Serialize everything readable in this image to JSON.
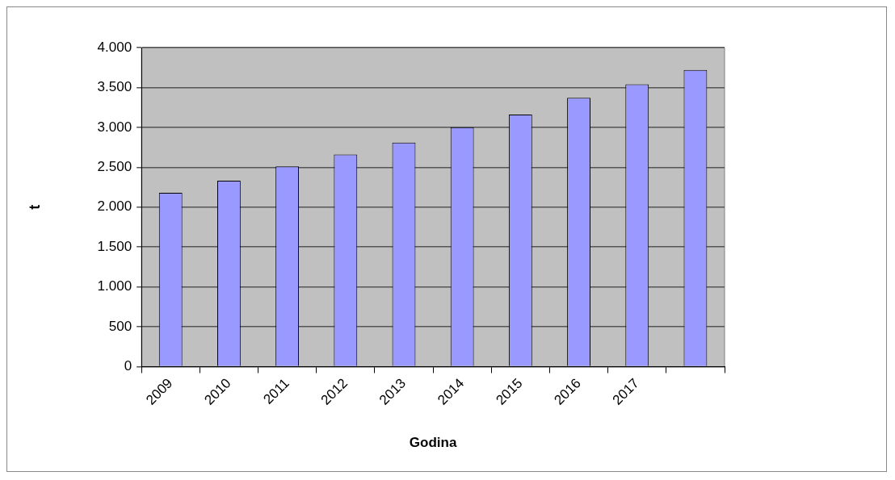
{
  "chart_data": {
    "type": "bar",
    "xlabel": "Godina",
    "ylabel": "t",
    "categories": [
      "2009",
      "2010",
      "2011",
      "2012",
      "2013",
      "2014",
      "2015",
      "2016",
      "2017",
      null
    ],
    "series": [
      {
        "color": "#9999ff",
        "values": [
          2180,
          2330,
          2510,
          2660,
          2810,
          3000,
          3160,
          3370,
          3540,
          3720
        ]
      }
    ],
    "ylim": [
      0,
      4000
    ],
    "yticks": [
      {
        "value": 0,
        "label": "0"
      },
      {
        "value": 500,
        "label": "500"
      },
      {
        "value": 1000,
        "label": "1.000"
      },
      {
        "value": 1500,
        "label": "1.500"
      },
      {
        "value": 2000,
        "label": "2.000"
      },
      {
        "value": 2500,
        "label": "2.500"
      },
      {
        "value": 3000,
        "label": "3.000"
      },
      {
        "value": 3500,
        "label": "3.500"
      },
      {
        "value": 4000,
        "label": "4.000"
      }
    ],
    "grid": "y",
    "legend": false
  }
}
